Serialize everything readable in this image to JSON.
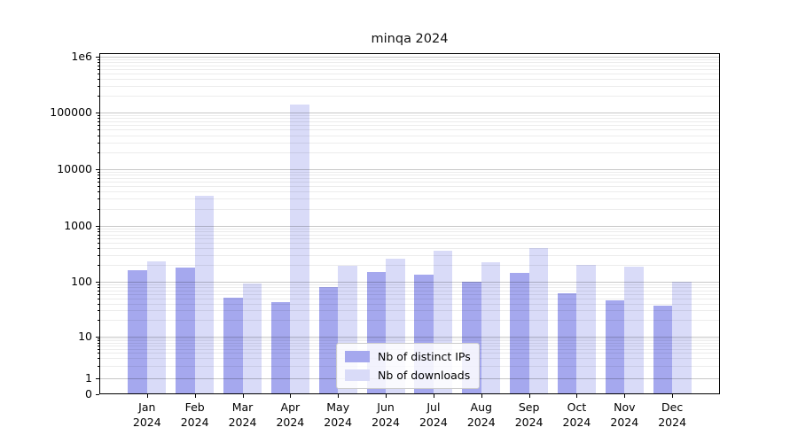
{
  "title": "minqa 2024",
  "chart_data": {
    "type": "bar",
    "title": "minqa 2024",
    "yscale": "symlog",
    "ylim": [
      0,
      1000000
    ],
    "grid": "both",
    "legend_position": "lower center",
    "categories": [
      "Jan 2024",
      "Feb 2024",
      "Mar 2024",
      "Apr 2024",
      "May 2024",
      "Jun 2024",
      "Jul 2024",
      "Aug 2024",
      "Sep 2024",
      "Oct 2024",
      "Nov 2024",
      "Dec 2024"
    ],
    "series": [
      {
        "name": "Nb of distinct IPs",
        "color": "#a5a8ee",
        "values": [
          160,
          180,
          52,
          42,
          80,
          148,
          133,
          99,
          145,
          63,
          45,
          36
        ]
      },
      {
        "name": "Nb of downloads",
        "color": "#d9dbf8",
        "values": [
          230,
          3400,
          95,
          140000,
          195,
          255,
          360,
          220,
          400,
          200,
          185,
          100
        ]
      }
    ],
    "y_ticks": [
      {
        "label": "1e6",
        "value": 1000000
      },
      {
        "label": "100000",
        "value": 100000
      },
      {
        "label": "10000",
        "value": 10000
      },
      {
        "label": "1000",
        "value": 1000
      },
      {
        "label": "100",
        "value": 100
      },
      {
        "label": "10",
        "value": 10
      },
      {
        "label": "1",
        "value": 1
      },
      {
        "label": "0",
        "value": 0
      }
    ]
  }
}
